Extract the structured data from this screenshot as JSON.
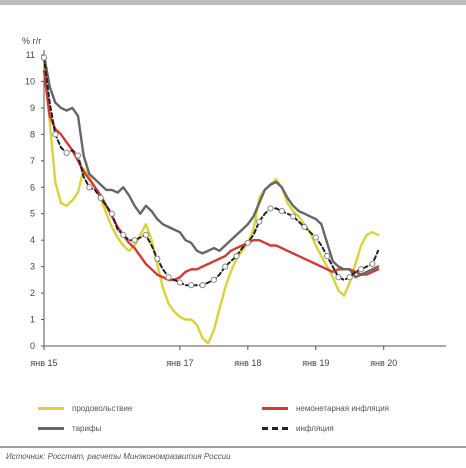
{
  "chart_data": {
    "type": "line",
    "ylabel": "% г/г",
    "ylim": [
      0,
      11
    ],
    "yticks": [
      0,
      1,
      2,
      3,
      4,
      5,
      6,
      7,
      8,
      9,
      10,
      11
    ],
    "xlim": [
      0,
      71
    ],
    "xticks": [
      {
        "x": 0,
        "label": "янв 15"
      },
      {
        "x": 24,
        "label": "янв 17"
      },
      {
        "x": 36,
        "label": "янв 18"
      },
      {
        "x": 48,
        "label": "янв 19"
      },
      {
        "x": 60,
        "label": "янв 20"
      }
    ],
    "grid": false,
    "legend": "bottom",
    "series": [
      {
        "name": "продовольствие",
        "color": "#d7d33a",
        "style": "solid",
        "points": [
          [
            0,
            10.5
          ],
          [
            1,
            8.5
          ],
          [
            2,
            6.2
          ],
          [
            3,
            5.4
          ],
          [
            4,
            5.3
          ],
          [
            5,
            5.5
          ],
          [
            6,
            5.8
          ],
          [
            7,
            6.7
          ],
          [
            8,
            6.4
          ],
          [
            9,
            6.0
          ],
          [
            10,
            5.6
          ],
          [
            11,
            5.0
          ],
          [
            12,
            4.5
          ],
          [
            13,
            4.1
          ],
          [
            14,
            3.8
          ],
          [
            15,
            3.6
          ],
          [
            16,
            3.8
          ],
          [
            17,
            4.2
          ],
          [
            18,
            4.6
          ],
          [
            19,
            4.0
          ],
          [
            20,
            3.1
          ],
          [
            21,
            2.2
          ],
          [
            22,
            1.6
          ],
          [
            23,
            1.3
          ],
          [
            24,
            1.1
          ],
          [
            25,
            1.0
          ],
          [
            26,
            1.0
          ],
          [
            27,
            0.8
          ],
          [
            28,
            0.3
          ],
          [
            29,
            0.1
          ],
          [
            30,
            0.6
          ],
          [
            31,
            1.4
          ],
          [
            32,
            2.2
          ],
          [
            33,
            2.8
          ],
          [
            34,
            3.3
          ],
          [
            35,
            3.6
          ],
          [
            36,
            3.9
          ],
          [
            37,
            4.4
          ],
          [
            38,
            5.6
          ],
          [
            39,
            5.9
          ],
          [
            40,
            6.1
          ],
          [
            41,
            6.3
          ],
          [
            42,
            6.0
          ],
          [
            43,
            5.4
          ],
          [
            44,
            5.1
          ],
          [
            45,
            4.9
          ],
          [
            46,
            4.6
          ],
          [
            47,
            4.3
          ],
          [
            48,
            3.8
          ],
          [
            49,
            3.4
          ],
          [
            50,
            3.0
          ],
          [
            51,
            2.6
          ],
          [
            52,
            2.1
          ],
          [
            53,
            1.9
          ],
          [
            54,
            2.4
          ],
          [
            55,
            3.1
          ],
          [
            56,
            3.8
          ],
          [
            57,
            4.2
          ],
          [
            58,
            4.3
          ],
          [
            59,
            4.2
          ]
        ]
      },
      {
        "name": "немонетарная инфляция",
        "color": "#d23a3a",
        "style": "solid",
        "points": [
          [
            0,
            10.4
          ],
          [
            1,
            8.7
          ],
          [
            2,
            8.2
          ],
          [
            3,
            8.0
          ],
          [
            4,
            7.7
          ],
          [
            5,
            7.4
          ],
          [
            6,
            7.0
          ],
          [
            7,
            6.6
          ],
          [
            8,
            6.3
          ],
          [
            9,
            6.0
          ],
          [
            10,
            5.7
          ],
          [
            11,
            5.3
          ],
          [
            12,
            4.9
          ],
          [
            13,
            4.5
          ],
          [
            14,
            4.2
          ],
          [
            15,
            3.9
          ],
          [
            16,
            3.7
          ],
          [
            17,
            3.4
          ],
          [
            18,
            3.1
          ],
          [
            19,
            2.9
          ],
          [
            20,
            2.7
          ],
          [
            21,
            2.6
          ],
          [
            22,
            2.5
          ],
          [
            23,
            2.5
          ],
          [
            24,
            2.6
          ],
          [
            25,
            2.8
          ],
          [
            26,
            2.9
          ],
          [
            27,
            2.9
          ],
          [
            28,
            3.0
          ],
          [
            29,
            3.1
          ],
          [
            30,
            3.2
          ],
          [
            31,
            3.3
          ],
          [
            32,
            3.4
          ],
          [
            33,
            3.6
          ],
          [
            34,
            3.7
          ],
          [
            35,
            3.8
          ],
          [
            36,
            3.9
          ],
          [
            37,
            4.0
          ],
          [
            38,
            4.0
          ],
          [
            39,
            3.9
          ],
          [
            40,
            3.8
          ],
          [
            41,
            3.8
          ],
          [
            42,
            3.7
          ],
          [
            43,
            3.6
          ],
          [
            44,
            3.5
          ],
          [
            45,
            3.4
          ],
          [
            46,
            3.3
          ],
          [
            47,
            3.2
          ],
          [
            48,
            3.1
          ],
          [
            49,
            3.0
          ],
          [
            50,
            2.9
          ],
          [
            51,
            2.8
          ],
          [
            52,
            2.9
          ],
          [
            53,
            2.9
          ],
          [
            54,
            2.9
          ],
          [
            55,
            2.8
          ],
          [
            56,
            2.7
          ],
          [
            57,
            2.7
          ],
          [
            58,
            2.8
          ],
          [
            59,
            2.9
          ]
        ]
      },
      {
        "name": "тарифы",
        "color": "#666666",
        "style": "solid",
        "points": [
          [
            0,
            11.0
          ],
          [
            1,
            9.8
          ],
          [
            2,
            9.2
          ],
          [
            3,
            9.0
          ],
          [
            4,
            8.9
          ],
          [
            5,
            9.0
          ],
          [
            6,
            8.7
          ],
          [
            7,
            7.2
          ],
          [
            8,
            6.5
          ],
          [
            9,
            6.3
          ],
          [
            10,
            6.1
          ],
          [
            11,
            5.9
          ],
          [
            12,
            5.9
          ],
          [
            13,
            5.8
          ],
          [
            14,
            6.0
          ],
          [
            15,
            5.7
          ],
          [
            16,
            5.3
          ],
          [
            17,
            5.0
          ],
          [
            18,
            5.3
          ],
          [
            19,
            5.1
          ],
          [
            20,
            4.8
          ],
          [
            21,
            4.6
          ],
          [
            22,
            4.5
          ],
          [
            23,
            4.4
          ],
          [
            24,
            4.3
          ],
          [
            25,
            4.0
          ],
          [
            26,
            3.9
          ],
          [
            27,
            3.6
          ],
          [
            28,
            3.5
          ],
          [
            29,
            3.6
          ],
          [
            30,
            3.7
          ],
          [
            31,
            3.6
          ],
          [
            32,
            3.8
          ],
          [
            33,
            4.0
          ],
          [
            34,
            4.2
          ],
          [
            35,
            4.4
          ],
          [
            36,
            4.6
          ],
          [
            37,
            4.9
          ],
          [
            38,
            5.4
          ],
          [
            39,
            5.9
          ],
          [
            40,
            6.1
          ],
          [
            41,
            6.2
          ],
          [
            42,
            6.0
          ],
          [
            43,
            5.6
          ],
          [
            44,
            5.3
          ],
          [
            45,
            5.1
          ],
          [
            46,
            5.0
          ],
          [
            47,
            4.9
          ],
          [
            48,
            4.8
          ],
          [
            49,
            4.6
          ],
          [
            50,
            3.9
          ],
          [
            51,
            3.2
          ],
          [
            52,
            3.0
          ],
          [
            53,
            2.9
          ],
          [
            54,
            2.9
          ],
          [
            55,
            2.6
          ],
          [
            56,
            2.7
          ],
          [
            57,
            2.8
          ],
          [
            58,
            2.9
          ],
          [
            59,
            3.0
          ]
        ]
      },
      {
        "name": "инфляция",
        "color": "#222222",
        "style": "dashed",
        "points": [
          [
            0,
            10.9
          ],
          [
            1,
            9.2
          ],
          [
            2,
            8.0
          ],
          [
            3,
            7.5
          ],
          [
            4,
            7.3
          ],
          [
            5,
            7.4
          ],
          [
            6,
            7.2
          ],
          [
            7,
            6.4
          ],
          [
            8,
            6.0
          ],
          [
            9,
            5.9
          ],
          [
            10,
            5.6
          ],
          [
            11,
            5.3
          ],
          [
            12,
            5.0
          ],
          [
            13,
            4.4
          ],
          [
            14,
            4.2
          ],
          [
            15,
            4.0
          ],
          [
            16,
            4.0
          ],
          [
            17,
            4.1
          ],
          [
            18,
            4.2
          ],
          [
            19,
            3.8
          ],
          [
            20,
            3.3
          ],
          [
            21,
            2.9
          ],
          [
            22,
            2.6
          ],
          [
            23,
            2.5
          ],
          [
            24,
            2.4
          ],
          [
            25,
            2.3
          ],
          [
            26,
            2.3
          ],
          [
            27,
            2.3
          ],
          [
            28,
            2.3
          ],
          [
            29,
            2.4
          ],
          [
            30,
            2.5
          ],
          [
            31,
            2.7
          ],
          [
            32,
            3.0
          ],
          [
            33,
            3.2
          ],
          [
            34,
            3.4
          ],
          [
            35,
            3.7
          ],
          [
            36,
            3.9
          ],
          [
            37,
            4.2
          ],
          [
            38,
            4.7
          ],
          [
            39,
            5.0
          ],
          [
            40,
            5.2
          ],
          [
            41,
            5.2
          ],
          [
            42,
            5.1
          ],
          [
            43,
            5.0
          ],
          [
            44,
            4.9
          ],
          [
            45,
            4.7
          ],
          [
            46,
            4.5
          ],
          [
            47,
            4.3
          ],
          [
            48,
            4.1
          ],
          [
            49,
            3.8
          ],
          [
            50,
            3.4
          ],
          [
            51,
            3.0
          ],
          [
            52,
            2.6
          ],
          [
            53,
            2.5
          ],
          [
            54,
            2.6
          ],
          [
            55,
            2.8
          ],
          [
            56,
            2.9
          ],
          [
            57,
            3.0
          ],
          [
            58,
            3.1
          ],
          [
            59,
            3.6
          ]
        ]
      }
    ]
  },
  "source": "Источник: Росстат, расчеты Минэкономразвития России"
}
